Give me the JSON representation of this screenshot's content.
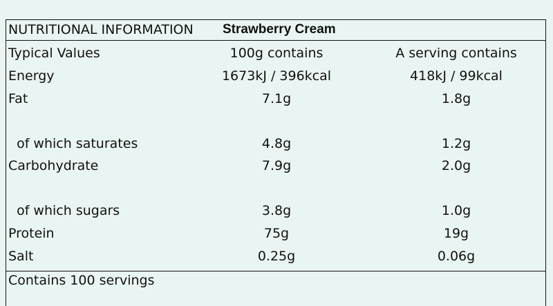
{
  "header": {
    "title": "NUTRITIONAL INFORMATION",
    "product": "Strawberry Cream"
  },
  "table": {
    "columns": [
      "Typical Values",
      "100g contains",
      "A serving contains"
    ],
    "rows": [
      [
        "Energy",
        "1673kJ / 396kcal",
        "418kJ / 99kcal"
      ],
      [
        "Fat",
        "7.1g",
        "1.8g"
      ],
      [
        "  of which saturates",
        "4.8g",
        "1.2g"
      ],
      [
        "Carbohydrate",
        "7.9g",
        "2.0g"
      ],
      [
        "  of which sugars",
        "3.8g",
        "1.0g"
      ],
      [
        "Protein",
        "75g",
        "19g"
      ],
      [
        "Salt",
        "0.25g",
        "0.06g"
      ]
    ]
  },
  "footer": "Contains 100 servings"
}
